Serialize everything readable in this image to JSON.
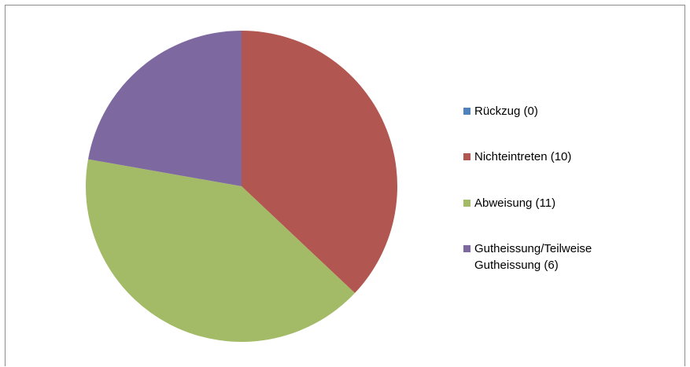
{
  "chart_data": {
    "type": "pie",
    "title": "",
    "start_angle_deg": 0,
    "direction": "clockwise",
    "legend_position": "right",
    "slices": [
      {
        "label": "Rückzug (0)",
        "value": 0,
        "color": "#4f81bd"
      },
      {
        "label": "Nichteintreten (10)",
        "value": 10,
        "color": "#b15650"
      },
      {
        "label": "Abweisung (11)",
        "value": 11,
        "color": "#a3bb67"
      },
      {
        "label": "Gutheissung/Teilweise Gutheissung (6)",
        "value": 6,
        "color": "#7e68a0"
      }
    ]
  }
}
